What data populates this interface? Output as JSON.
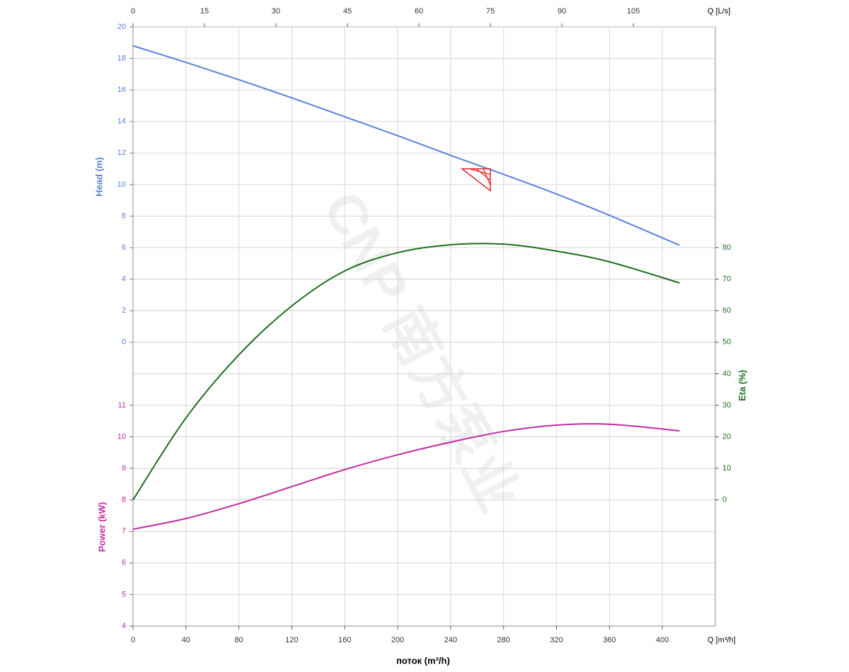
{
  "chart_data": {
    "type": "line",
    "watermark": "CNP 南方泵业",
    "xlabel": "поток (m³/h)",
    "xunit_label": "Q [m³/h]",
    "x2unit_label": "Q [L/s]",
    "ylabel": "Head (m)",
    "y2label": "Eta (%)",
    "y3label": "Power (kW)",
    "xlim": [
      0,
      440
    ],
    "xticks": [
      0,
      40,
      80,
      120,
      160,
      200,
      240,
      280,
      320,
      360,
      400
    ],
    "x2lim": [
      0,
      122.2
    ],
    "x2ticks": [
      0,
      15,
      30,
      45,
      60,
      75,
      90,
      105
    ],
    "ylim": [
      -18,
      20
    ],
    "yticks": [
      0,
      2,
      4,
      6,
      8,
      10,
      12,
      14,
      16,
      18,
      20
    ],
    "y2lim": [
      -40,
      150
    ],
    "y2ticks": [
      0,
      10,
      20,
      30,
      40,
      50,
      60,
      70,
      80
    ],
    "y3lim": [
      4,
      23
    ],
    "y3ticks": [
      4,
      5,
      6,
      7,
      8,
      9,
      10,
      11
    ],
    "grid": true,
    "x": [
      0,
      40,
      80,
      120,
      160,
      200,
      240,
      280,
      320,
      360,
      413
    ],
    "series": [
      {
        "name": "Head (m)",
        "axis": "y",
        "color": "#5b7fdc",
        "values": [
          18.8,
          17.75,
          16.65,
          15.5,
          14.3,
          13.1,
          11.85,
          10.65,
          9.4,
          8.05,
          6.15
        ]
      },
      {
        "name": "Eta (%)",
        "axis": "y2",
        "color": "#1d6e1d",
        "values": [
          0,
          26,
          46,
          61.5,
          72.6,
          78.4,
          80.9,
          81.1,
          78.9,
          75.5,
          68.8
        ]
      },
      {
        "name": "Power (kW)",
        "axis": "y3",
        "color": "#c42aa2",
        "values": [
          7.07,
          7.41,
          7.88,
          8.42,
          8.96,
          9.43,
          9.83,
          10.17,
          10.37,
          10.4,
          10.19
        ]
      }
    ],
    "duty_point": {
      "x": 270,
      "y": 11,
      "color": "#e8262a"
    }
  }
}
